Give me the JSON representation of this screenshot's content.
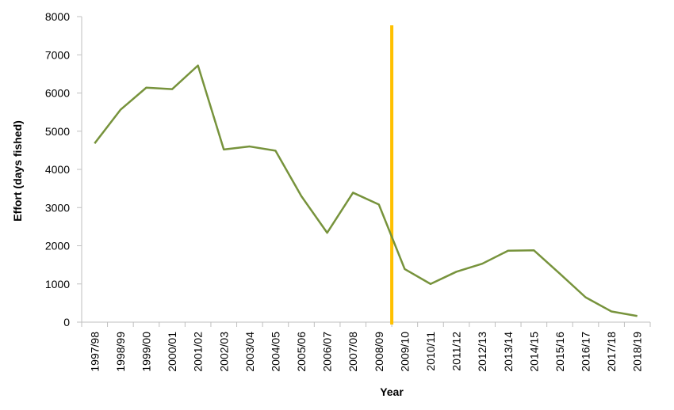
{
  "chart_data": {
    "type": "line",
    "title": "",
    "xlabel": "Year",
    "ylabel": "Effort (days fished)",
    "ylim": [
      0,
      8000
    ],
    "yticks": [
      0,
      1000,
      2000,
      3000,
      4000,
      5000,
      6000,
      7000,
      8000
    ],
    "grid": false,
    "legend": "none",
    "categories": [
      "1997/98",
      "1998/99",
      "1999/00",
      "2000/01",
      "2001/02",
      "2002/03",
      "2003/04",
      "2004/05",
      "2005/06",
      "2006/07",
      "2007/08",
      "2008/09",
      "2009/10",
      "2010/11",
      "2011/12",
      "2012/13",
      "2013/14",
      "2014/15",
      "2015/16",
      "2016/17",
      "2017/18",
      "2018/19"
    ],
    "series": [
      {
        "color": "#77933c",
        "values": [
          4680,
          5560,
          6140,
          6100,
          6720,
          4520,
          4600,
          4490,
          3300,
          2340,
          3390,
          3080,
          1390,
          1000,
          1320,
          1530,
          1870,
          1880,
          1270,
          650,
          280,
          160
        ]
      }
    ],
    "marker_line": {
      "color": "#ffc000",
      "between": [
        "2008/09",
        "2009/10"
      ]
    },
    "axis_color": "#bfbfbf"
  }
}
